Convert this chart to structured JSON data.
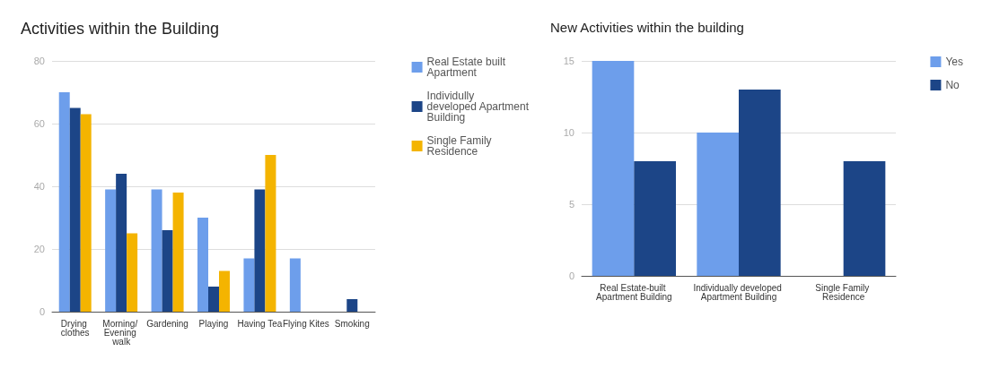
{
  "chart_data": [
    {
      "type": "bar",
      "title": "Activities within the Building",
      "categories": [
        "Drying clothes",
        "Morning/ Evening walk",
        "Gardening",
        "Playing",
        "Having Tea",
        "Flying Kites",
        "Smoking"
      ],
      "series": [
        {
          "name": "Real Estate built Apartment",
          "color": "#6d9eeb",
          "values": [
            70,
            39,
            39,
            30,
            17,
            17,
            0
          ]
        },
        {
          "name": "Individully developed Apartment Building",
          "color": "#1c4587",
          "values": [
            65,
            44,
            26,
            8,
            39,
            0,
            4
          ]
        },
        {
          "name": "Single Family Residence",
          "color": "#f4b400",
          "values": [
            63,
            25,
            38,
            13,
            50,
            0,
            0
          ]
        }
      ],
      "ylim": [
        0,
        80
      ],
      "yticks": [
        0,
        20,
        40,
        60,
        80
      ],
      "grid": "y",
      "legend": "right"
    },
    {
      "type": "bar",
      "title": "New Activities within the building",
      "categories": [
        "Real Estate-built Apartment Building",
        "Individually developed Apartment Building",
        "Single Family Residence"
      ],
      "series": [
        {
          "name": "Yes",
          "color": "#6d9eeb",
          "values": [
            15,
            10,
            0
          ]
        },
        {
          "name": "No",
          "color": "#1c4587",
          "values": [
            8,
            13,
            8
          ]
        }
      ],
      "ylim": [
        0,
        15
      ],
      "yticks": [
        0,
        5,
        10,
        15
      ],
      "grid": "y",
      "legend": "right"
    }
  ]
}
